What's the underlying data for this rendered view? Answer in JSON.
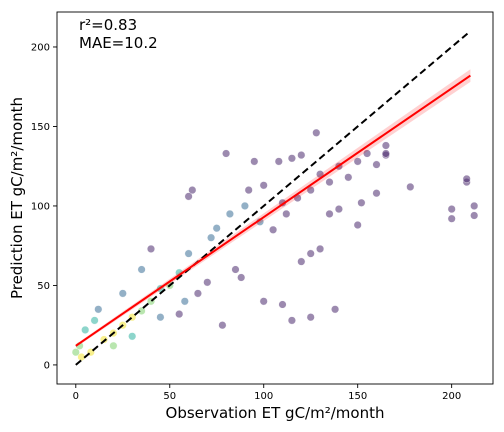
{
  "chart_data": {
    "type": "scatter",
    "title": "",
    "xlabel": "Observation ET gC/m²/month",
    "ylabel": "Prediction ET gC/m²/month",
    "xlim": [
      -10,
      222
    ],
    "ylim": [
      -12,
      222
    ],
    "xticks": [
      0,
      50,
      100,
      150,
      200
    ],
    "yticks": [
      0,
      50,
      100,
      150,
      200
    ],
    "annotations": [
      "r²=0.83",
      "MAE=10.2"
    ],
    "grid": false,
    "legend": "none",
    "colormap": "viridis (point density)",
    "lines": [
      {
        "kind": "identity",
        "style": "dashed",
        "color": "#000000",
        "x": [
          0,
          210
        ],
        "y": [
          0,
          210
        ]
      },
      {
        "kind": "regression",
        "style": "solid",
        "color": "#ff0000",
        "x": [
          0,
          210
        ],
        "y": [
          12,
          182
        ]
      }
    ],
    "points": [
      {
        "x": 45,
        "y": 48
      },
      {
        "x": 60,
        "y": 70
      },
      {
        "x": 75,
        "y": 86
      },
      {
        "x": 90,
        "y": 100
      },
      {
        "x": 100,
        "y": 113
      },
      {
        "x": 110,
        "y": 102
      },
      {
        "x": 130,
        "y": 120
      },
      {
        "x": 140,
        "y": 125
      },
      {
        "x": 150,
        "y": 128
      },
      {
        "x": 155,
        "y": 133
      },
      {
        "x": 160,
        "y": 126
      },
      {
        "x": 165,
        "y": 132
      },
      {
        "x": 165,
        "y": 138
      },
      {
        "x": 165,
        "y": 133
      },
      {
        "x": 152,
        "y": 102
      },
      {
        "x": 160,
        "y": 108
      },
      {
        "x": 128,
        "y": 146
      },
      {
        "x": 80,
        "y": 133
      },
      {
        "x": 62,
        "y": 110
      },
      {
        "x": 60,
        "y": 106
      },
      {
        "x": 40,
        "y": 73
      },
      {
        "x": 58,
        "y": 40
      },
      {
        "x": 100,
        "y": 40
      },
      {
        "x": 110,
        "y": 38
      },
      {
        "x": 115,
        "y": 28
      },
      {
        "x": 125,
        "y": 30
      },
      {
        "x": 138,
        "y": 35
      },
      {
        "x": 78,
        "y": 25
      },
      {
        "x": 120,
        "y": 65
      },
      {
        "x": 125,
        "y": 70
      },
      {
        "x": 130,
        "y": 73
      },
      {
        "x": 200,
        "y": 98
      },
      {
        "x": 200,
        "y": 92
      },
      {
        "x": 208,
        "y": 115
      },
      {
        "x": 208,
        "y": 117
      },
      {
        "x": 212,
        "y": 100
      },
      {
        "x": 212,
        "y": 94
      },
      {
        "x": 178,
        "y": 112
      },
      {
        "x": 150,
        "y": 88
      },
      {
        "x": 140,
        "y": 98
      },
      {
        "x": 135,
        "y": 95
      },
      {
        "x": 108,
        "y": 128
      },
      {
        "x": 115,
        "y": 130
      },
      {
        "x": 120,
        "y": 132
      },
      {
        "x": 95,
        "y": 128
      },
      {
        "x": 85,
        "y": 60
      },
      {
        "x": 70,
        "y": 52
      },
      {
        "x": 88,
        "y": 55
      },
      {
        "x": 30,
        "y": 18
      },
      {
        "x": 20,
        "y": 12
      },
      {
        "x": 10,
        "y": 28
      },
      {
        "x": 12,
        "y": 35
      },
      {
        "x": 5,
        "y": 22
      },
      {
        "x": 25,
        "y": 45
      },
      {
        "x": 35,
        "y": 60
      },
      {
        "x": 45,
        "y": 30
      },
      {
        "x": 55,
        "y": 32
      },
      {
        "x": 65,
        "y": 45
      },
      {
        "x": 72,
        "y": 80
      },
      {
        "x": 82,
        "y": 95
      },
      {
        "x": 92,
        "y": 110
      },
      {
        "x": 98,
        "y": 90
      },
      {
        "x": 105,
        "y": 85
      },
      {
        "x": 112,
        "y": 95
      },
      {
        "x": 118,
        "y": 105
      },
      {
        "x": 125,
        "y": 110
      },
      {
        "x": 135,
        "y": 115
      },
      {
        "x": 145,
        "y": 118
      },
      {
        "x": 30,
        "y": 30
      },
      {
        "x": 25,
        "y": 25
      },
      {
        "x": 20,
        "y": 20
      },
      {
        "x": 15,
        "y": 16
      },
      {
        "x": 35,
        "y": 34
      },
      {
        "x": 40,
        "y": 40
      },
      {
        "x": 50,
        "y": 50
      },
      {
        "x": 55,
        "y": 58
      },
      {
        "x": 8,
        "y": 8
      },
      {
        "x": 3,
        "y": 5
      },
      {
        "x": 0,
        "y": 8
      },
      {
        "x": 2,
        "y": 12
      }
    ]
  }
}
